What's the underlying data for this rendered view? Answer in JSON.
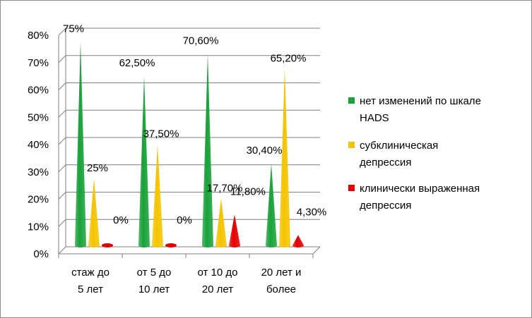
{
  "chart_data": {
    "type": "bar",
    "style": "3d-cone",
    "categories": [
      [
        "стаж до",
        "5 лет"
      ],
      [
        "от 5 до",
        "10 лет"
      ],
      [
        "от 10 до",
        "20 лет"
      ],
      [
        "20 лет и",
        "более"
      ]
    ],
    "series": [
      {
        "name": [
          "нет изменений  по шкале",
          "HADS"
        ],
        "color": "#1aa23a",
        "values": [
          75,
          62.5,
          70.6,
          30.4
        ],
        "labels": [
          "75%",
          "62,50%",
          "70,60%",
          "30,40%"
        ]
      },
      {
        "name": [
          "субклиническая",
          "депрессия"
        ],
        "color": "#f5c400",
        "values": [
          25,
          37.5,
          17.7,
          65.2
        ],
        "labels": [
          "25%",
          "37,50%",
          "17,70%",
          "65,20%"
        ]
      },
      {
        "name": [
          "клинически выраженная",
          "депрессия"
        ],
        "color": "#e50000",
        "values": [
          0,
          0,
          11.8,
          4.3
        ],
        "labels": [
          "0%",
          "0%",
          "11,80%",
          "4,30%"
        ]
      }
    ],
    "ylim": [
      0,
      80
    ],
    "yticks": [
      "0%",
      "10%",
      "20%",
      "30%",
      "40%",
      "50%",
      "60%",
      "70%",
      "80%"
    ],
    "grid": true,
    "legend": "right"
  }
}
